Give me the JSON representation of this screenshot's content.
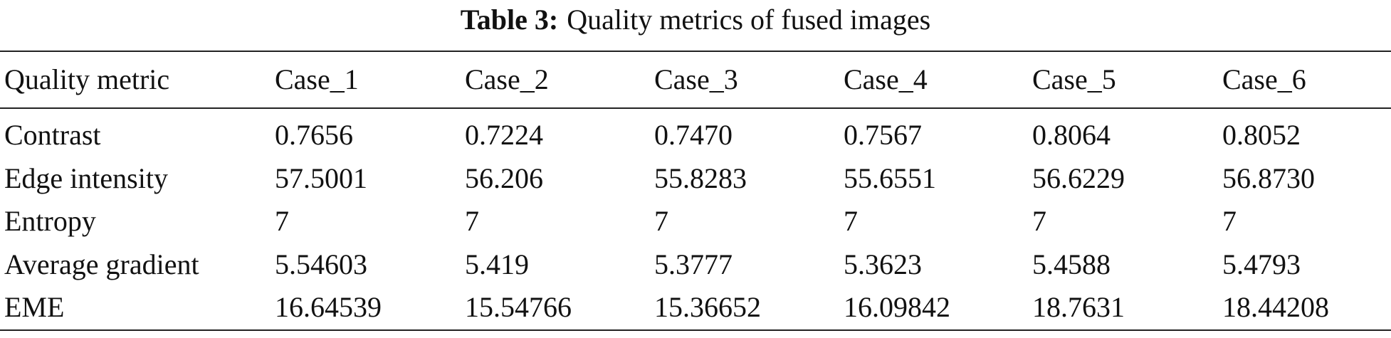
{
  "caption": {
    "label": "Table 3:",
    "text": "Quality metrics of fused images"
  },
  "table": {
    "header": [
      "Quality metric",
      "Case_1",
      "Case_2",
      "Case_3",
      "Case_4",
      "Case_5",
      "Case_6"
    ],
    "rows": [
      [
        "Contrast",
        "0.7656",
        "0.7224",
        "0.7470",
        "0.7567",
        "0.8064",
        "0.8052"
      ],
      [
        "Edge intensity",
        "57.5001",
        "56.206",
        "55.8283",
        "55.6551",
        "56.6229",
        "56.8730"
      ],
      [
        "Entropy",
        "7",
        "7",
        "7",
        "7",
        "7",
        "7"
      ],
      [
        "Average gradient",
        "5.54603",
        "5.419",
        "5.3777",
        "5.3623",
        "5.4588",
        "5.4793"
      ],
      [
        "EME",
        "16.64539",
        "15.54766",
        "15.36652",
        "16.09842",
        "18.7631",
        "18.44208"
      ]
    ]
  }
}
